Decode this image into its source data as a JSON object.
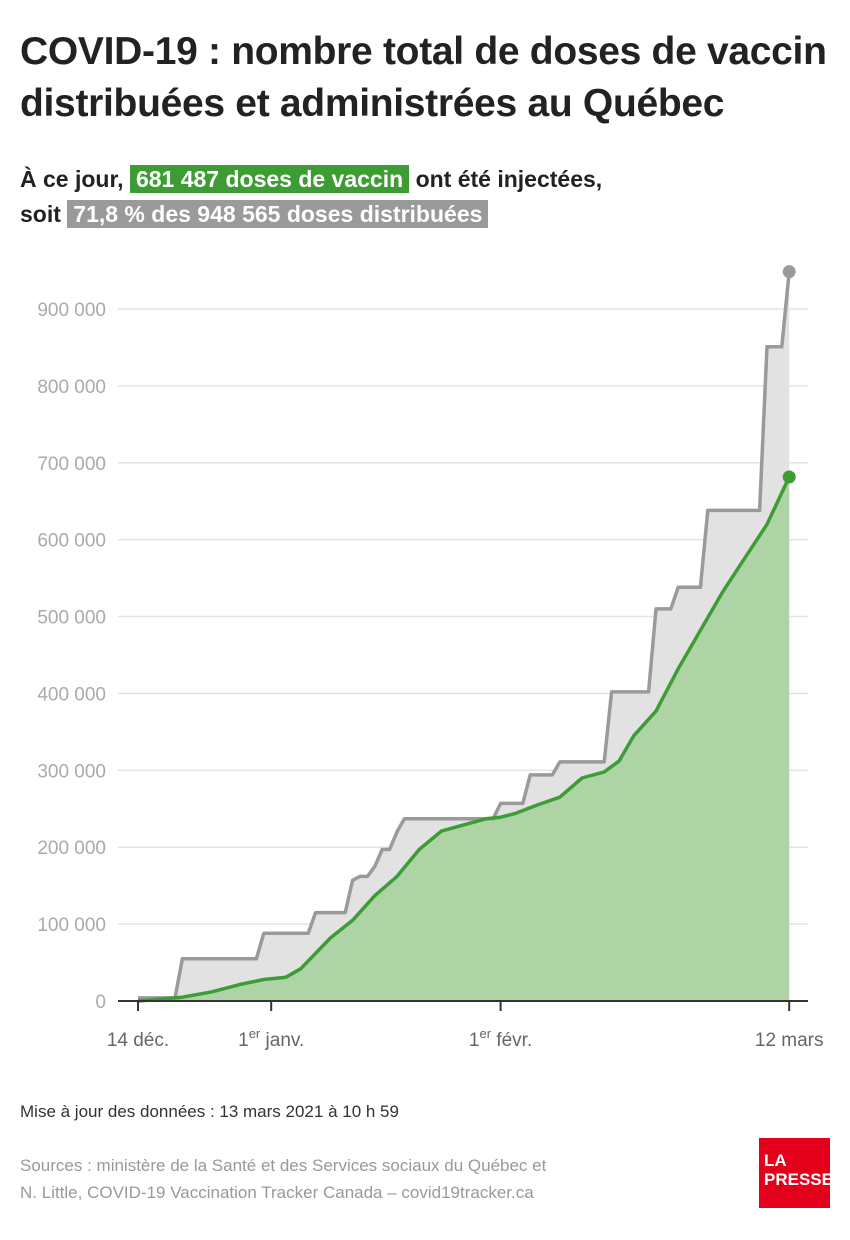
{
  "title": "COVID-19 : nombre total de doses de vaccin distribuées et administrées au Québec",
  "subtitle": {
    "line1_pre": "À ce jour,",
    "line1_highlight": "681 487 doses de vaccin",
    "line1_post": "ont été injectées,",
    "line2_pre": "soit",
    "line2_highlight": "71,8 % des 948 565 doses distribuées"
  },
  "colors": {
    "administered": "#3e9c35",
    "administered_fill": "#aed4a6",
    "distributed": "#9a9a9a",
    "distributed_fill": "#e2e2e2",
    "logo": "#e2001a"
  },
  "chart_data": {
    "type": "area",
    "y_ticks": [
      "0",
      "100 000",
      "200 000",
      "300 000",
      "400 000",
      "500 000",
      "600 000",
      "700 000",
      "800 000",
      "900 000"
    ],
    "y_tick_values": [
      0,
      100000,
      200000,
      300000,
      400000,
      500000,
      600000,
      700000,
      800000,
      900000
    ],
    "ylim": [
      0,
      900000
    ],
    "grid": true,
    "x_ticks": [
      {
        "date": "2020-12-14",
        "pre": "14 déc.",
        "sup": "",
        "post": ""
      },
      {
        "date": "2021-01-01",
        "pre": "1",
        "sup": "er",
        "post": " janv."
      },
      {
        "date": "2021-02-01",
        "pre": "1",
        "sup": "er",
        "post": " févr."
      },
      {
        "date": "2021-03-12",
        "pre": "12 mars",
        "sup": "",
        "post": ""
      }
    ],
    "xlim": [
      "2020-12-14",
      "2021-03-12"
    ],
    "series": [
      {
        "key": "distributed",
        "points": [
          [
            "2020-12-14",
            4000
          ],
          [
            "2020-12-19",
            4000
          ],
          [
            "2020-12-20",
            55000
          ],
          [
            "2020-12-30",
            55000
          ],
          [
            "2020-12-31",
            88000
          ],
          [
            "2021-01-06",
            88000
          ],
          [
            "2021-01-07",
            115000
          ],
          [
            "2021-01-11",
            115000
          ],
          [
            "2021-01-12",
            157000
          ],
          [
            "2021-01-13",
            162000
          ],
          [
            "2021-01-14",
            162000
          ],
          [
            "2021-01-15",
            175000
          ],
          [
            "2021-01-16",
            197000
          ],
          [
            "2021-01-17",
            197000
          ],
          [
            "2021-01-18",
            220000
          ],
          [
            "2021-01-19",
            237000
          ],
          [
            "2021-01-31",
            237000
          ],
          [
            "2021-02-01",
            257000
          ],
          [
            "2021-02-04",
            257000
          ],
          [
            "2021-02-05",
            294000
          ],
          [
            "2021-02-08",
            294000
          ],
          [
            "2021-02-09",
            311000
          ],
          [
            "2021-02-15",
            311000
          ],
          [
            "2021-02-16",
            402000
          ],
          [
            "2021-02-21",
            402000
          ],
          [
            "2021-02-22",
            510000
          ],
          [
            "2021-02-24",
            510000
          ],
          [
            "2021-02-25",
            538000
          ],
          [
            "2021-02-28",
            538000
          ],
          [
            "2021-03-01",
            638000
          ],
          [
            "2021-03-08",
            638000
          ],
          [
            "2021-03-09",
            851000
          ],
          [
            "2021-03-11",
            851000
          ],
          [
            "2021-03-12",
            948565
          ]
        ]
      },
      {
        "key": "administered",
        "points": [
          [
            "2020-12-14",
            0
          ],
          [
            "2020-12-20",
            5000
          ],
          [
            "2020-12-24",
            12000
          ],
          [
            "2020-12-28",
            22000
          ],
          [
            "2020-12-31",
            28000
          ],
          [
            "2021-01-03",
            31000
          ],
          [
            "2021-01-05",
            42000
          ],
          [
            "2021-01-07",
            62000
          ],
          [
            "2021-01-09",
            82000
          ],
          [
            "2021-01-12",
            105000
          ],
          [
            "2021-01-15",
            137000
          ],
          [
            "2021-01-18",
            162000
          ],
          [
            "2021-01-21",
            197000
          ],
          [
            "2021-01-24",
            221000
          ],
          [
            "2021-01-27",
            229000
          ],
          [
            "2021-01-30",
            237000
          ],
          [
            "2021-02-01",
            239000
          ],
          [
            "2021-02-03",
            244000
          ],
          [
            "2021-02-06",
            255000
          ],
          [
            "2021-02-09",
            265000
          ],
          [
            "2021-02-12",
            290000
          ],
          [
            "2021-02-15",
            298000
          ],
          [
            "2021-02-17",
            312000
          ],
          [
            "2021-02-19",
            345000
          ],
          [
            "2021-02-22",
            377000
          ],
          [
            "2021-02-25",
            432000
          ],
          [
            "2021-02-28",
            482000
          ],
          [
            "2021-03-03",
            532000
          ],
          [
            "2021-03-06",
            576000
          ],
          [
            "2021-03-09",
            620000
          ],
          [
            "2021-03-12",
            681487
          ]
        ]
      }
    ]
  },
  "footer": {
    "update": "Mise à jour des données : 13 mars 2021 à 10 h 59",
    "sources_line1": "Sources : ministère de la Santé et des Services sociaux du Québec et",
    "sources_line2": "N. Little, COVID-19 Vaccination Tracker Canada – covid19tracker.ca",
    "logo_line1": "LA",
    "logo_line2": "PRESSE"
  }
}
